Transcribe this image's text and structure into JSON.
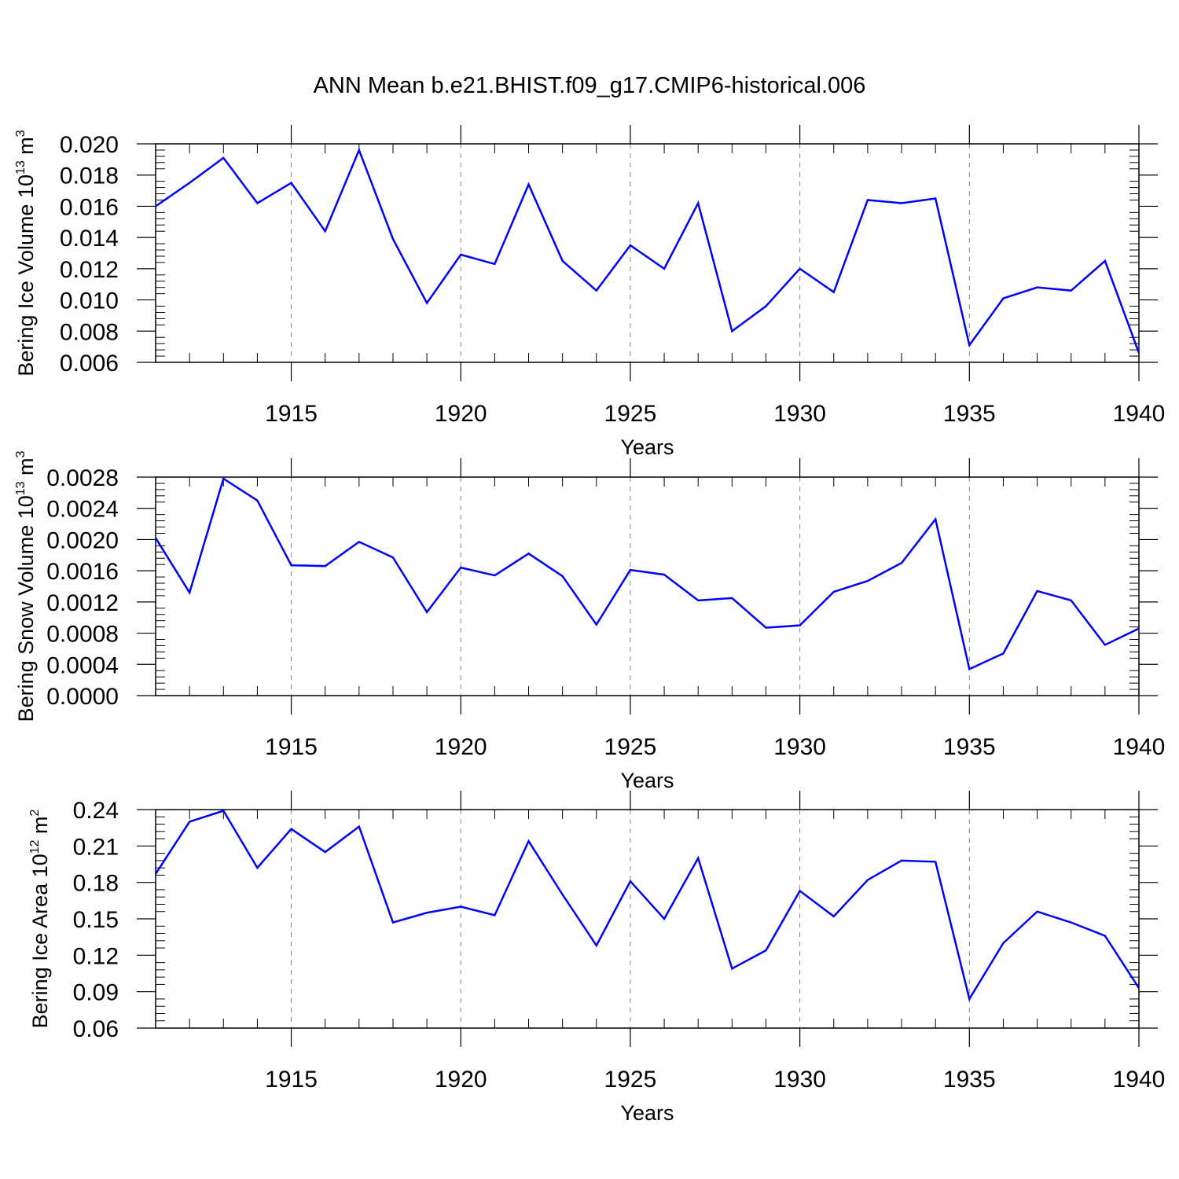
{
  "title": "ANN Mean b.e21.BHIST.f09_g17.CMIP6-historical.006",
  "colors": {
    "line": "#0000ff",
    "axis": "#000000",
    "grid": "#888888"
  },
  "chart_data": [
    {
      "type": "line",
      "xlabel": "Years",
      "ylabel": {
        "text": "Bering Ice Volume 10",
        "exp": "13",
        "unit": " m",
        "unit_exp": "3"
      },
      "x": [
        1911,
        1912,
        1913,
        1914,
        1915,
        1916,
        1917,
        1918,
        1919,
        1920,
        1921,
        1922,
        1923,
        1924,
        1925,
        1926,
        1927,
        1928,
        1929,
        1930,
        1931,
        1932,
        1933,
        1934,
        1935,
        1936,
        1937,
        1938,
        1939,
        1940
      ],
      "xlim": [
        1911,
        1940
      ],
      "xticks": [
        1915,
        1920,
        1925,
        1930,
        1935,
        1940
      ],
      "xtick_labels": [
        "1915",
        "1920",
        "1925",
        "1930",
        "1935",
        "1940"
      ],
      "ylim": [
        0.006,
        0.02
      ],
      "yticks": [
        0.006,
        0.008,
        0.01,
        0.012,
        0.014,
        0.016,
        0.018,
        0.02
      ],
      "ytick_labels": [
        "0.006",
        "0.008",
        "0.010",
        "0.012",
        "0.014",
        "0.016",
        "0.018",
        "0.020"
      ],
      "grid": "vertical dashed at major x ticks",
      "series": [
        {
          "values": [
            0.016,
            0.0175,
            0.0191,
            0.0162,
            0.0175,
            0.0144,
            0.0196,
            0.0139,
            0.0098,
            0.0129,
            0.0123,
            0.0174,
            0.0125,
            0.0106,
            0.0135,
            0.012,
            0.0162,
            0.008,
            0.0096,
            0.012,
            0.0105,
            0.0164,
            0.0162,
            0.0165,
            0.0071,
            0.0101,
            0.0108,
            0.0106,
            0.0125,
            0.0066
          ]
        }
      ]
    },
    {
      "type": "line",
      "xlabel": "Years",
      "ylabel": {
        "text": "Bering Snow Volume 10",
        "exp": "13",
        "unit": " m",
        "unit_exp": "3"
      },
      "x": [
        1911,
        1912,
        1913,
        1914,
        1915,
        1916,
        1917,
        1918,
        1919,
        1920,
        1921,
        1922,
        1923,
        1924,
        1925,
        1926,
        1927,
        1928,
        1929,
        1930,
        1931,
        1932,
        1933,
        1934,
        1935,
        1936,
        1937,
        1938,
        1939,
        1940
      ],
      "xlim": [
        1911,
        1940
      ],
      "xticks": [
        1915,
        1920,
        1925,
        1930,
        1935,
        1940
      ],
      "xtick_labels": [
        "1915",
        "1920",
        "1925",
        "1930",
        "1935",
        "1940"
      ],
      "ylim": [
        0.0,
        0.0028
      ],
      "yticks": [
        0.0,
        0.0004,
        0.0008,
        0.0012,
        0.0016,
        0.002,
        0.0024,
        0.0028
      ],
      "ytick_labels": [
        "0.0000",
        "0.0004",
        "0.0008",
        "0.0012",
        "0.0016",
        "0.0020",
        "0.0024",
        "0.0028"
      ],
      "grid": "vertical dashed at major x ticks",
      "series": [
        {
          "values": [
            0.00202,
            0.00132,
            0.00278,
            0.0025,
            0.00167,
            0.00166,
            0.00197,
            0.00177,
            0.00107,
            0.00164,
            0.00154,
            0.00182,
            0.00153,
            0.00091,
            0.00161,
            0.00155,
            0.00122,
            0.00125,
            0.00087,
            0.0009,
            0.00133,
            0.00147,
            0.0017,
            0.00226,
            0.00034,
            0.00054,
            0.00134,
            0.00122,
            0.00065,
            0.00086
          ]
        }
      ]
    },
    {
      "type": "line",
      "xlabel": "Years",
      "ylabel": {
        "text": "Bering Ice Area 10",
        "exp": "12",
        "unit": " m",
        "unit_exp": "2"
      },
      "x": [
        1911,
        1912,
        1913,
        1914,
        1915,
        1916,
        1917,
        1918,
        1919,
        1920,
        1921,
        1922,
        1923,
        1924,
        1925,
        1926,
        1927,
        1928,
        1929,
        1930,
        1931,
        1932,
        1933,
        1934,
        1935,
        1936,
        1937,
        1938,
        1939,
        1940
      ],
      "xlim": [
        1911,
        1940
      ],
      "xticks": [
        1915,
        1920,
        1925,
        1930,
        1935,
        1940
      ],
      "xtick_labels": [
        "1915",
        "1920",
        "1925",
        "1930",
        "1935",
        "1940"
      ],
      "ylim": [
        0.06,
        0.24
      ],
      "yticks": [
        0.06,
        0.09,
        0.12,
        0.15,
        0.18,
        0.21,
        0.24
      ],
      "ytick_labels": [
        "0.06",
        "0.09",
        "0.12",
        "0.15",
        "0.18",
        "0.21",
        "0.24"
      ],
      "grid": "vertical dashed at major x ticks",
      "series": [
        {
          "values": [
            0.187,
            0.23,
            0.239,
            0.192,
            0.224,
            0.205,
            0.226,
            0.147,
            0.155,
            0.16,
            0.153,
            0.214,
            0.17,
            0.128,
            0.181,
            0.15,
            0.2,
            0.109,
            0.124,
            0.173,
            0.152,
            0.182,
            0.198,
            0.197,
            0.084,
            0.13,
            0.156,
            0.147,
            0.136,
            0.093
          ]
        }
      ]
    }
  ]
}
